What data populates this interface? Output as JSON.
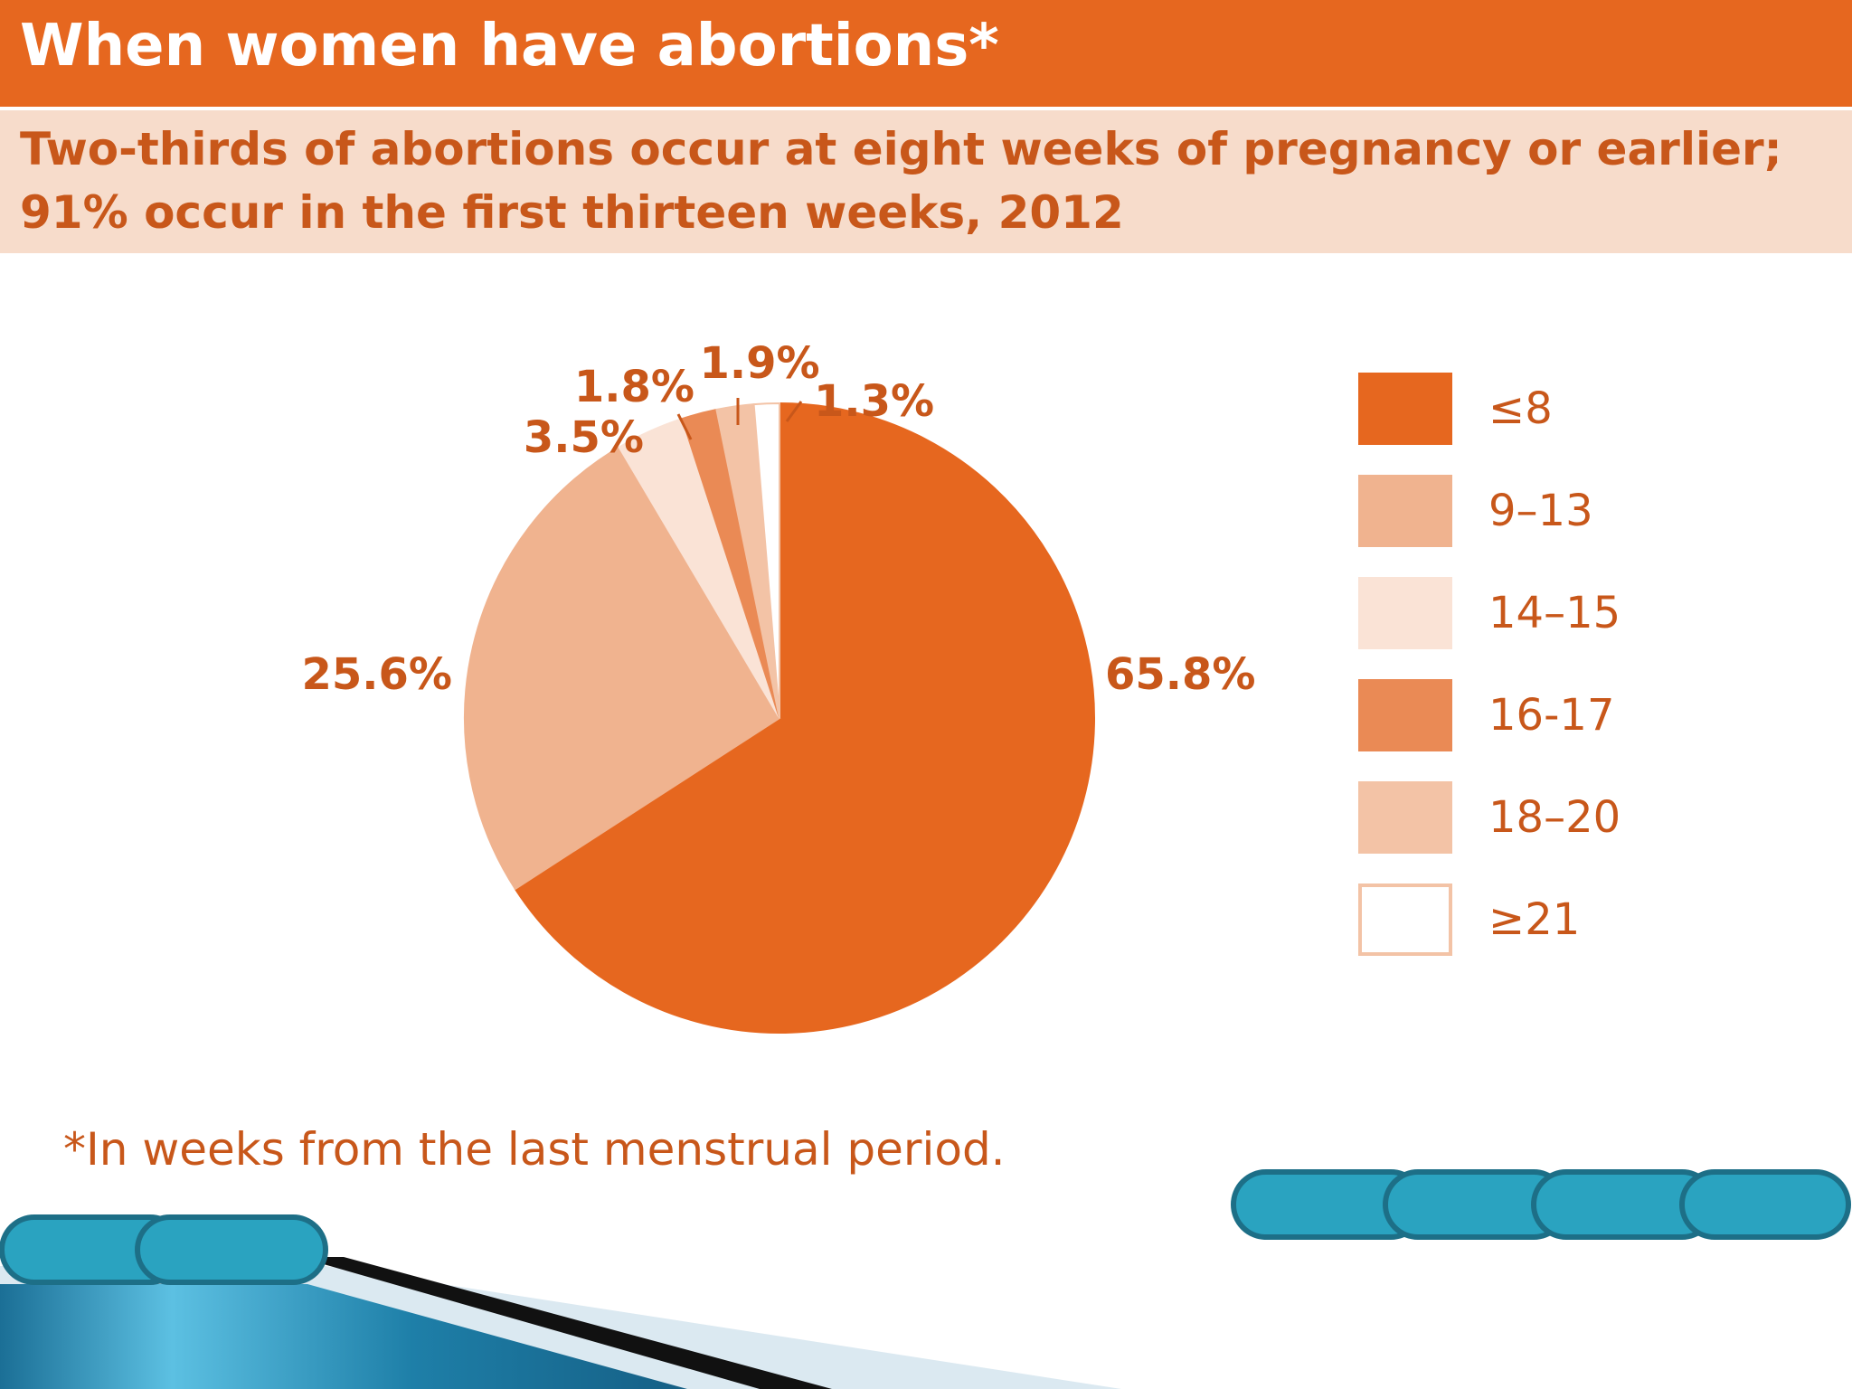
{
  "header": {
    "title": "When women have abortions*",
    "subtitle_line1": "Two-thirds of abortions occur at eight weeks of pregnancy or earlier;",
    "subtitle_line2": "91% occur in the first thirteen weeks, 2012"
  },
  "footnote": "*In weeks from the last menstrual period.",
  "colors": {
    "title_bar": "#e6671f",
    "subtitle_bar": "#f7dccb",
    "text_orange": "#c8571a",
    "deco_blue": "#2aa3c0"
  },
  "chart_data": {
    "type": "pie",
    "title": "When women have abortions*",
    "legend_position": "right",
    "slices": [
      {
        "label": "≤8",
        "value": 65.8,
        "value_label": "65.8%",
        "color": "#e6671f"
      },
      {
        "label": "9–13",
        "value": 25.6,
        "value_label": "25.6%",
        "color": "#f0b38f"
      },
      {
        "label": "14–15",
        "value": 3.5,
        "value_label": "3.5%",
        "color": "#fae3d6"
      },
      {
        "label": "16-17",
        "value": 1.8,
        "value_label": "1.8%",
        "color": "#ea8a55"
      },
      {
        "label": "18–20",
        "value": 1.9,
        "value_label": "1.9%",
        "color": "#f3c3a6"
      },
      {
        "label": "≥21",
        "value": 1.3,
        "value_label": "1.3%",
        "color": "#ffffff"
      }
    ]
  }
}
